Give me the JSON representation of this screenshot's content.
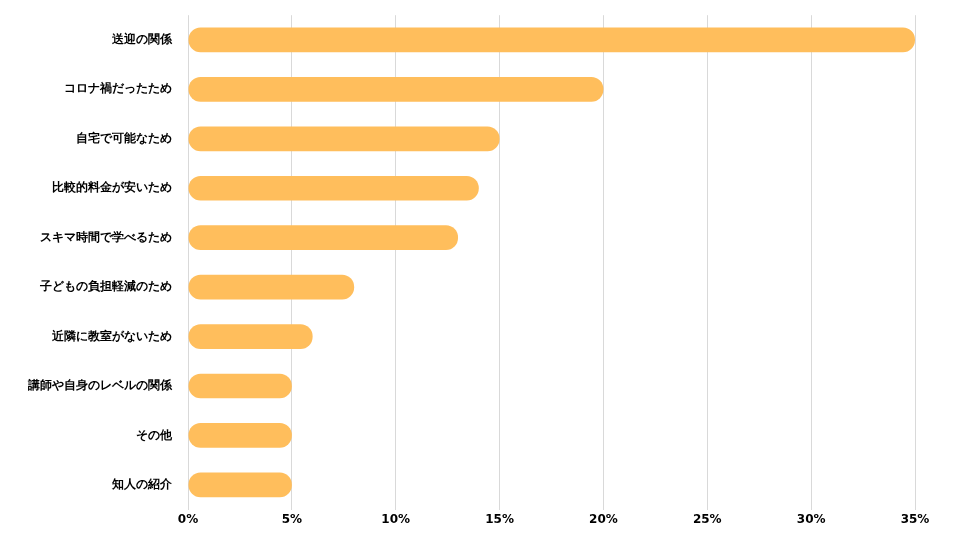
{
  "chart_data": {
    "type": "bar",
    "orientation": "horizontal",
    "categories": [
      "送迎の関係",
      "コロナ禍だったため",
      "自宅で可能なため",
      "比較的料金が安いため",
      "スキマ時間で学べるため",
      "子どもの負担軽減のため",
      "近隣に教室がないため",
      "講師や自身のレベルの関係",
      "その他",
      "知人の紹介"
    ],
    "values": [
      35,
      20,
      15,
      14,
      13,
      8,
      6,
      5,
      5,
      5
    ],
    "color": "#ffbe5c",
    "xlim": [
      0,
      35
    ],
    "xticks": [
      {
        "value": 0,
        "label": "0%"
      },
      {
        "value": 5,
        "label": "5%"
      },
      {
        "value": 10,
        "label": "10%"
      },
      {
        "value": 15,
        "label": "15%"
      },
      {
        "value": 20,
        "label": "20%"
      },
      {
        "value": 25,
        "label": "25%"
      },
      {
        "value": 30,
        "label": "30%"
      },
      {
        "value": 35,
        "label": "35%"
      }
    ],
    "grid": true
  }
}
